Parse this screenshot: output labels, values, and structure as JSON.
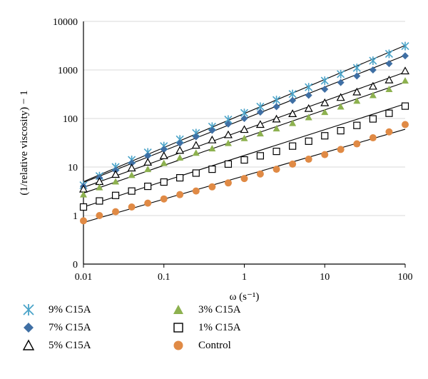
{
  "chart_data": {
    "type": "scatter",
    "title": "",
    "xlabel": "ω (s⁻¹)",
    "ylabel": "(1/relative viscosity) − 1",
    "x_scale": "log",
    "y_scale": "log",
    "xlim": [
      0.01,
      100
    ],
    "ylim": [
      0,
      10000
    ],
    "x_ticks": [
      "0.01",
      "0.1",
      "1",
      "10",
      "100"
    ],
    "y_ticks": [
      "0",
      "1",
      "10",
      "100",
      "1000",
      "10000"
    ],
    "grid": "horizontal",
    "legend_position": "bottom",
    "x": [
      0.01,
      0.0158,
      0.0251,
      0.0398,
      0.0631,
      0.1,
      0.158,
      0.251,
      0.398,
      0.631,
      1,
      1.58,
      2.51,
      3.98,
      6.31,
      10,
      15.8,
      25.1,
      39.8,
      63.1,
      100
    ],
    "series": [
      {
        "name": "9% C15A",
        "marker": "asterisk",
        "color": "#4aa3c8",
        "values": [
          4.2,
          6.5,
          10,
          14,
          20,
          27,
          37,
          50,
          68,
          95,
          130,
          175,
          240,
          320,
          440,
          600,
          820,
          1100,
          1550,
          2150,
          3100
        ],
        "fit": [
          5.0,
          3200
        ]
      },
      {
        "name": "7% C15A",
        "marker": "diamond",
        "color": "#3f6fa4",
        "values": [
          4.0,
          6.0,
          8.5,
          12,
          17,
          23,
          31,
          42,
          57,
          77,
          100,
          135,
          175,
          235,
          300,
          400,
          550,
          750,
          1000,
          1350,
          1950
        ],
        "fit": [
          4.8,
          2000
        ]
      },
      {
        "name": "5% C15A",
        "marker": "triangle-open",
        "color": "#000000",
        "values": [
          3.5,
          5.0,
          7.0,
          9.5,
          12.5,
          17,
          22,
          28,
          36,
          46,
          59,
          75,
          97,
          125,
          160,
          210,
          270,
          350,
          460,
          620,
          950
        ],
        "fit": [
          3.8,
          900
        ]
      },
      {
        "name": "3% C15A",
        "marker": "triangle-filled",
        "color": "#8db14f",
        "values": [
          2.7,
          3.8,
          5.0,
          6.8,
          9.0,
          12,
          15.5,
          19.5,
          24,
          31,
          39,
          49,
          62,
          80,
          105,
          135,
          175,
          230,
          300,
          400,
          600
        ],
        "fit": [
          2.9,
          560
        ]
      },
      {
        "name": "1% C15A",
        "marker": "square-open",
        "color": "#000000",
        "values": [
          1.5,
          2.0,
          2.6,
          3.2,
          4.0,
          4.9,
          6.0,
          7.5,
          9.0,
          11.5,
          14,
          17,
          21,
          27,
          34,
          44,
          56,
          72,
          98,
          128,
          180
        ],
        "fit": [
          1.5,
          200
        ]
      },
      {
        "name": "Control",
        "marker": "circle-filled",
        "color": "#e08a45",
        "values": [
          0.78,
          1.0,
          1.2,
          1.5,
          1.8,
          2.2,
          2.7,
          3.2,
          3.9,
          4.7,
          5.8,
          7.2,
          9.0,
          11.5,
          14.5,
          18,
          23,
          30,
          40,
          53,
          75
        ],
        "fit": [
          0.72,
          60
        ]
      }
    ]
  }
}
